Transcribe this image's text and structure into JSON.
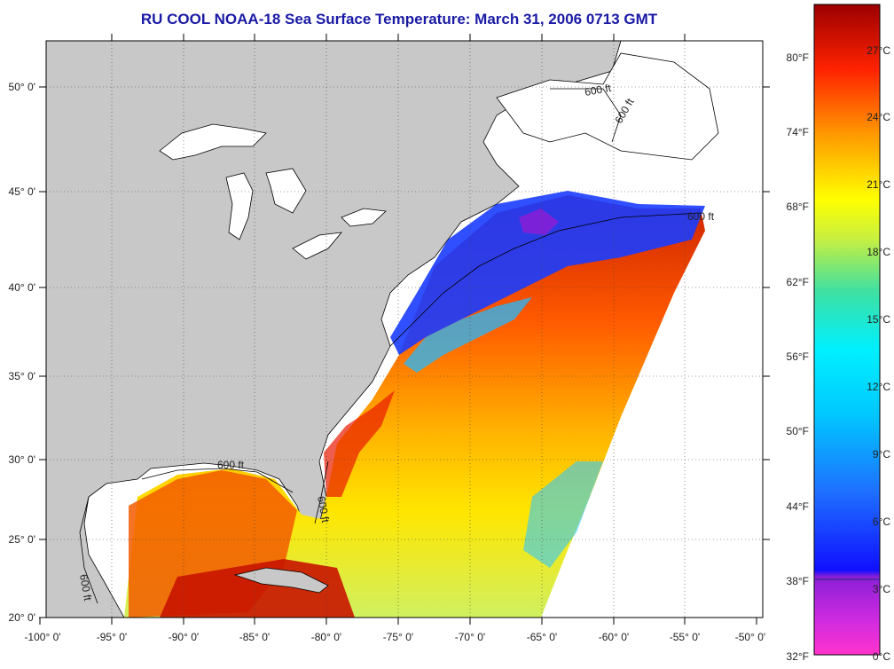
{
  "title": "RU COOL  NOAA-18  Sea Surface Temperature:  March 31, 2006 0713 GMT",
  "map": {
    "lat_labels": [
      "50° 0'",
      "45° 0'",
      "40° 0'",
      "35° 0'",
      "30° 0'",
      "25° 0'",
      "20° 0'"
    ],
    "lon_labels": [
      "-100° 0'",
      "-95° 0'",
      "-90° 0'",
      "-85° 0'",
      "-80° 0'",
      "-75° 0'",
      "-70° 0'",
      "-65° 0'",
      "-60° 0'",
      "-55° 0'",
      "-50° 0'"
    ],
    "contour_labels": [
      "600 ft",
      "600 ft",
      "600 ft",
      "600 ft",
      "600 ft",
      "600 ft"
    ],
    "colors": {
      "land": "#c8c8c8",
      "water_nodata": "#ffffff",
      "coastline": "#000000"
    }
  },
  "colorbar": {
    "fahrenheit_labels": [
      "80°F",
      "74°F",
      "68°F",
      "62°F",
      "56°F",
      "50°F",
      "44°F",
      "38°F",
      "32°F"
    ],
    "celsius_labels": [
      "27°C",
      "24°C",
      "21°C",
      "18°C",
      "15°C",
      "12°C",
      "9°C",
      "6°C",
      "3°C",
      "0°C"
    ],
    "stops": [
      "#ff33cc",
      "#9a1fd6",
      "#1010ff",
      "#1e90ff",
      "#00f0ff",
      "#40e0a0",
      "#c8f040",
      "#ffff00",
      "#ff9900",
      "#ff2200",
      "#9b0000"
    ]
  }
}
